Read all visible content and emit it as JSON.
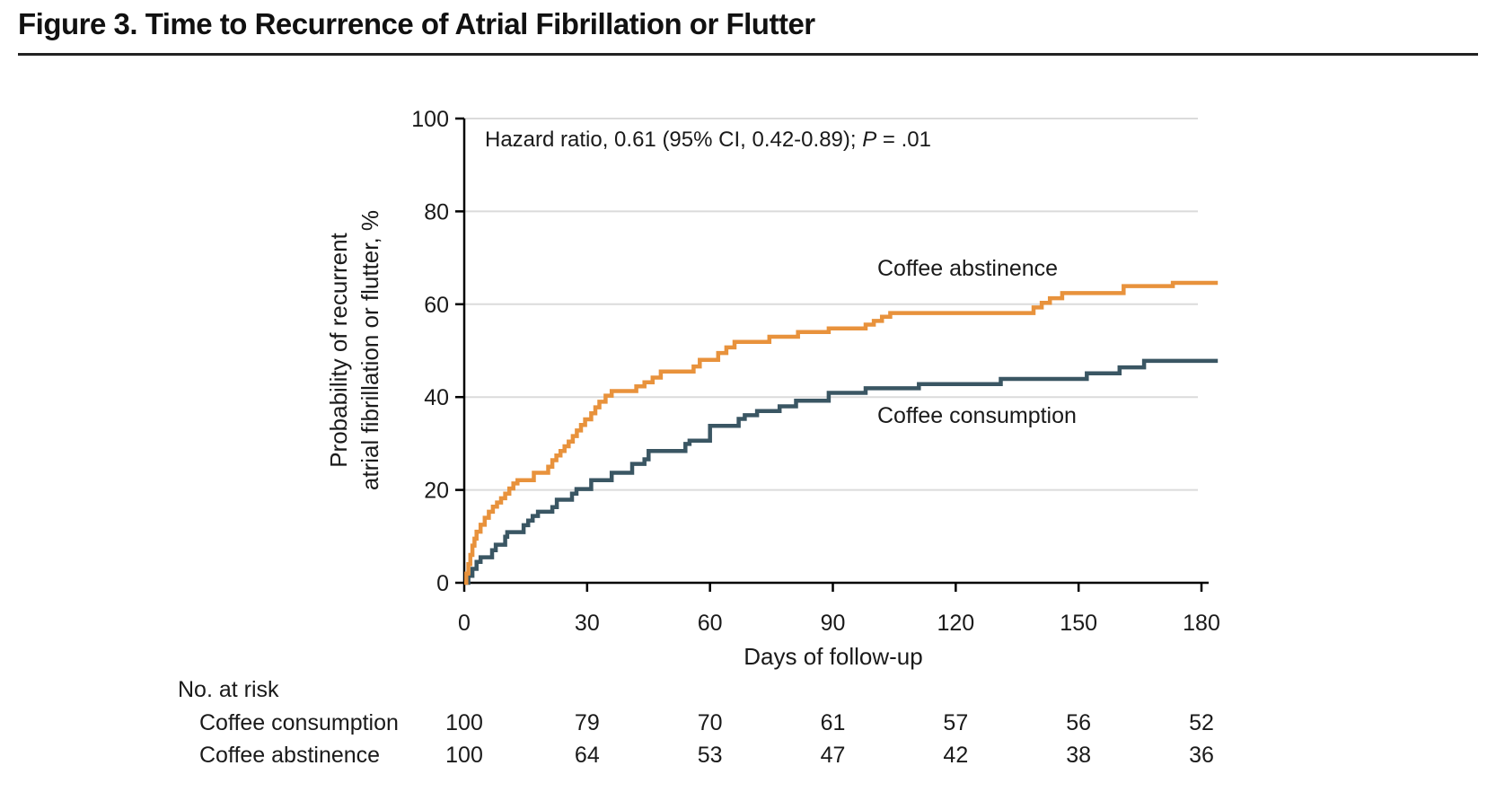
{
  "figure": {
    "title": "Figure 3. Time to Recurrence of Atrial Fibrillation or Flutter"
  },
  "colors": {
    "orange": "#E8923C",
    "slate": "#3A5663",
    "grid": "#DBDBDB",
    "axis": "#000000",
    "text": "#1A1A1A"
  },
  "chart_data": {
    "type": "line",
    "subtype": "kaplan-meier-step",
    "title": "Time to Recurrence of Atrial Fibrillation or Flutter",
    "annotation": {
      "prefix": "Hazard ratio, 0.61 (95% CI, 0.42-0.89); ",
      "p_label": "P",
      "suffix": " = .01"
    },
    "xlabel": "Days of follow-up",
    "ylabel_line1": "Probability of recurrent",
    "ylabel_line2": "atrial fibrillation or flutter, %",
    "x_ticks": [
      0,
      30,
      60,
      90,
      120,
      150,
      180
    ],
    "y_ticks": [
      0,
      20,
      40,
      60,
      80,
      100
    ],
    "xlim": [
      0,
      184
    ],
    "ylim": [
      0,
      100
    ],
    "grid": "horizontal",
    "legend_position": "inline-labels",
    "series": [
      {
        "name": "Coffee consumption",
        "color": "#3A5663",
        "end_day": 184,
        "steps": [
          [
            0,
            0
          ],
          [
            1,
            1.5
          ],
          [
            2,
            3
          ],
          [
            3,
            4.5
          ],
          [
            4,
            5.5
          ],
          [
            6.8,
            7
          ],
          [
            7.7,
            8.2
          ],
          [
            10,
            9.9
          ],
          [
            10.5,
            10.9
          ],
          [
            14.5,
            12.4
          ],
          [
            15.6,
            13.4
          ],
          [
            16.7,
            14.4
          ],
          [
            18,
            15.3
          ],
          [
            21.5,
            16.3
          ],
          [
            22.6,
            17.9
          ],
          [
            26.3,
            19.2
          ],
          [
            27.4,
            20.2
          ],
          [
            31,
            22.1
          ],
          [
            36,
            23.7
          ],
          [
            41,
            25.6
          ],
          [
            44,
            26.6
          ],
          [
            45,
            28.4
          ],
          [
            54,
            29.9
          ],
          [
            55,
            30.6
          ],
          [
            60,
            33.8
          ],
          [
            67,
            35.3
          ],
          [
            68.5,
            36.1
          ],
          [
            71.5,
            37
          ],
          [
            77,
            38
          ],
          [
            81,
            39.2
          ],
          [
            89,
            40.9
          ],
          [
            98,
            41.9
          ],
          [
            111,
            42.8
          ],
          [
            131,
            43.9
          ],
          [
            152,
            45.1
          ],
          [
            160,
            46.4
          ],
          [
            166,
            47.8
          ]
        ]
      },
      {
        "name": "Coffee abstinence",
        "color": "#E8923C",
        "end_day": 184,
        "steps": [
          [
            0,
            0
          ],
          [
            0.5,
            2
          ],
          [
            1,
            4
          ],
          [
            1.5,
            6
          ],
          [
            2,
            8
          ],
          [
            2.5,
            9.5
          ],
          [
            3,
            11
          ],
          [
            4,
            12.5
          ],
          [
            5,
            14
          ],
          [
            6,
            15.3
          ],
          [
            7,
            16.4
          ],
          [
            8,
            17.3
          ],
          [
            9,
            18.2
          ],
          [
            10,
            19.2
          ],
          [
            11,
            20.3
          ],
          [
            12,
            21.4
          ],
          [
            13,
            22.1
          ],
          [
            17,
            23.7
          ],
          [
            20.5,
            25
          ],
          [
            21.5,
            26.4
          ],
          [
            22.5,
            27.4
          ],
          [
            23.5,
            28.4
          ],
          [
            24.5,
            29.4
          ],
          [
            25.5,
            30.4
          ],
          [
            26.5,
            31.6
          ],
          [
            27.5,
            32.8
          ],
          [
            28.5,
            34
          ],
          [
            29.5,
            35.2
          ],
          [
            31,
            36.5
          ],
          [
            32,
            37.8
          ],
          [
            33,
            39
          ],
          [
            34.5,
            40.3
          ],
          [
            36,
            41.3
          ],
          [
            42,
            42.3
          ],
          [
            44,
            43.2
          ],
          [
            46,
            44.2
          ],
          [
            48,
            45.5
          ],
          [
            56,
            46.6
          ],
          [
            57.5,
            48
          ],
          [
            62,
            49.5
          ],
          [
            64,
            50.7
          ],
          [
            66,
            51.9
          ],
          [
            74.5,
            53
          ],
          [
            81.5,
            54
          ],
          [
            89,
            54.8
          ],
          [
            98,
            55.6
          ],
          [
            100,
            56.4
          ],
          [
            102,
            57.3
          ],
          [
            104,
            58.1
          ],
          [
            139,
            59.3
          ],
          [
            141,
            60.3
          ],
          [
            143,
            61.3
          ],
          [
            146,
            62.4
          ],
          [
            161,
            63.9
          ],
          [
            173,
            64.6
          ]
        ]
      }
    ],
    "at_risk": {
      "header": "No. at risk",
      "days": [
        0,
        30,
        60,
        90,
        120,
        150,
        180
      ],
      "rows": [
        {
          "label": "Coffee consumption",
          "counts": [
            100,
            79,
            70,
            61,
            57,
            56,
            52
          ]
        },
        {
          "label": "Coffee abstinence",
          "counts": [
            100,
            64,
            53,
            47,
            42,
            38,
            36
          ]
        }
      ]
    }
  }
}
